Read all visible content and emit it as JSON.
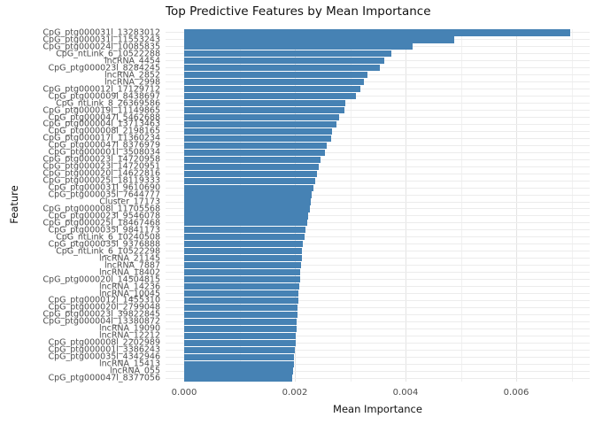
{
  "chart_data": {
    "type": "bar",
    "orientation": "horizontal",
    "title": "Top Predictive Features by Mean Importance",
    "xlabel": "Mean Importance",
    "ylabel": "Feature",
    "xlim": [
      0,
      0.007
    ],
    "x_ticks": [
      {
        "label": "0.000",
        "value": 0.0
      },
      {
        "label": "0.002",
        "value": 0.002
      },
      {
        "label": "0.004",
        "value": 0.004
      },
      {
        "label": "0.006",
        "value": 0.006
      }
    ],
    "grid": true,
    "legend": "none",
    "bar_color": "#4682B4",
    "grid_major_color": "#e4e4e4",
    "grid_minor_color": "#f1f1f1",
    "categories": [
      "CpG_ptg000031l_13283012",
      "CpG_ptg000031l_11553243",
      "CpG_ptg000024l_10085835",
      "CpG_ntLink_6_10522288",
      "lncRNA_4454",
      "CpG_ptg000023l_8284245",
      "lncRNA_2852",
      "lncRNA_2998",
      "CpG_ptg000012l_17129712",
      "CpG_ptg000009l_8438697",
      "CpG_ntLink_8_26369586",
      "CpG_ptg000019l_11149865",
      "CpG_ptg000047l_5462688",
      "CpG_ptg000004l_13713463",
      "CpG_ptg000008l_2198165",
      "CpG_ptg000017l_11360234",
      "CpG_ptg000047l_8376979",
      "CpG_ptg000001l_3508034",
      "CpG_ptg000023l_14720958",
      "CpG_ptg000023l_14720951",
      "CpG_ptg000020l_14622816",
      "CpG_ptg000025l_18119333",
      "CpG_ptg000031l_9610690",
      "CpG_ptg000035l_7644777",
      "Cluster_17173",
      "CpG_ptg000008l_11705568",
      "CpG_ptg000023l_9546078",
      "CpG_ptg000025l_18467468",
      "CpG_ptg000035l_9841173",
      "CpG_ntLink_6_10240508",
      "CpG_ptg000035l_9376888",
      "CpG_ntLink_6_10522298",
      "lncRNA_21145",
      "lncRNA_7887",
      "lncRNA_18402",
      "CpG_ptg000020l_14504815",
      "lncRNA_14236",
      "lncRNA_10045",
      "CpG_ptg000012l_1455310",
      "CpG_ptg000020l_2799048",
      "CpG_ptg000023l_39822845",
      "CpG_ptg000004l_13380872",
      "lncRNA_19090",
      "lncRNA_12212",
      "CpG_ptg000008l_2202989",
      "CpG_ptg000001l_3386243",
      "CpG_ptg000035l_4342946",
      "lncRNA_15413",
      "lncRNA_055",
      "CpG_ptg000047l_8377056"
    ],
    "values": [
      0.00697,
      0.00488,
      0.00413,
      0.00374,
      0.00362,
      0.00354,
      0.00331,
      0.00325,
      0.00318,
      0.0031,
      0.00291,
      0.00289,
      0.0028,
      0.00275,
      0.00267,
      0.00265,
      0.00258,
      0.00254,
      0.00246,
      0.00243,
      0.0024,
      0.00237,
      0.00234,
      0.00231,
      0.00229,
      0.00227,
      0.00224,
      0.00222,
      0.00219,
      0.00217,
      0.00215,
      0.00213,
      0.00212,
      0.00211,
      0.0021,
      0.00209,
      0.00208,
      0.00207,
      0.00206,
      0.00205,
      0.00204,
      0.00203,
      0.00203,
      0.00202,
      0.00201,
      0.002,
      0.00199,
      0.00198,
      0.00197,
      0.00195
    ]
  }
}
